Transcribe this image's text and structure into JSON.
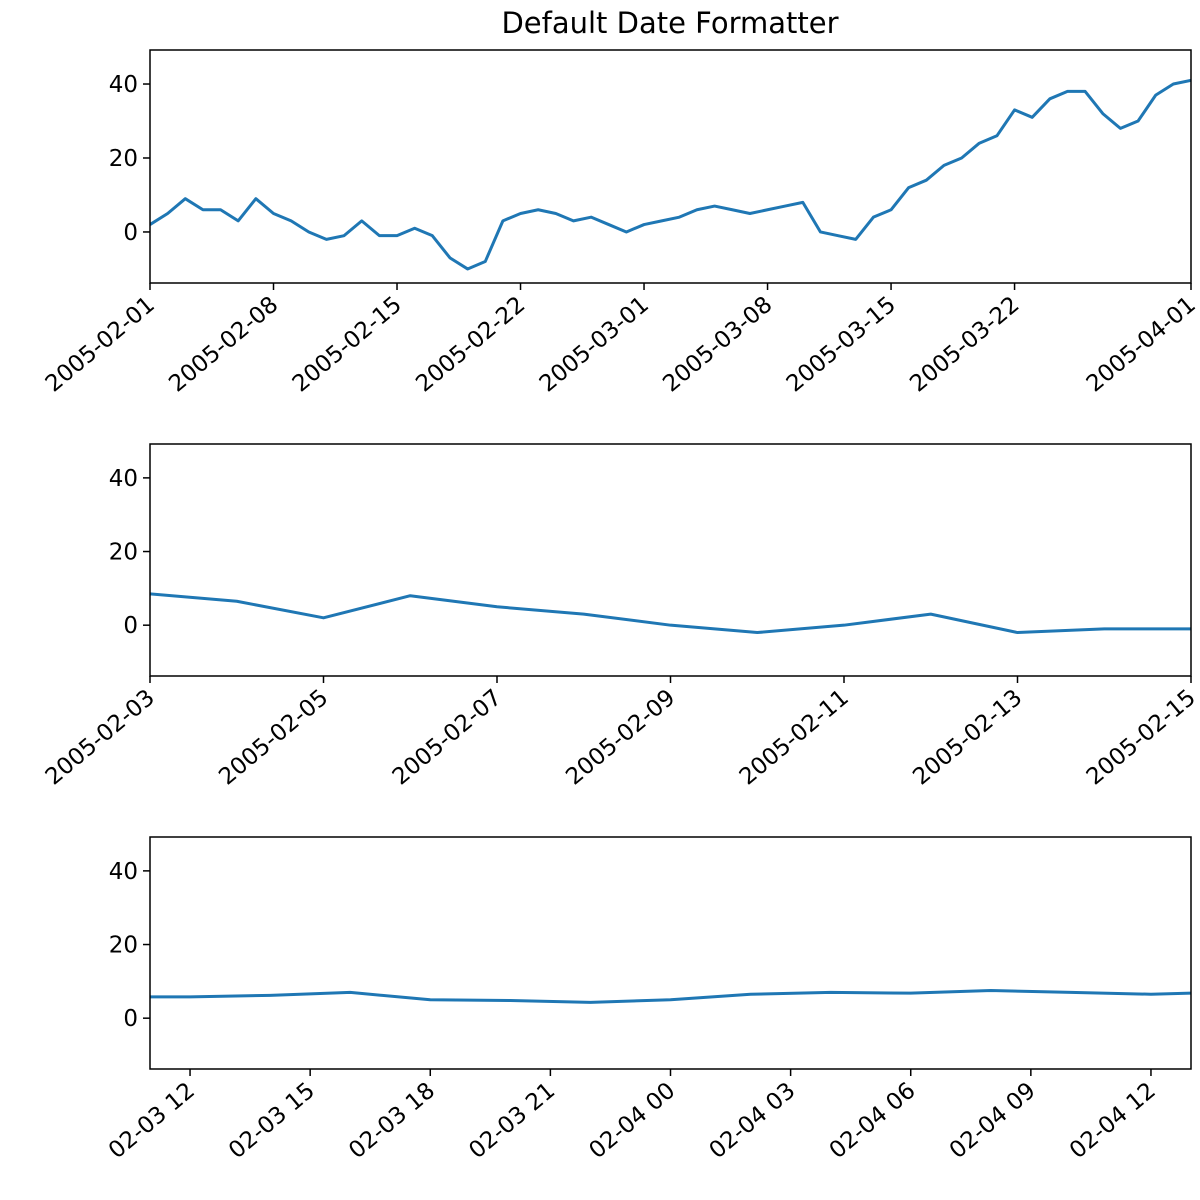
{
  "chart_data": [
    {
      "type": "line",
      "title": "Default Date Formatter",
      "color": "#1f77b4",
      "x": [
        "2005-02-01",
        "2005-02-02",
        "2005-02-03",
        "2005-02-04",
        "2005-02-05",
        "2005-02-06",
        "2005-02-07",
        "2005-02-08",
        "2005-02-09",
        "2005-02-10",
        "2005-02-11",
        "2005-02-12",
        "2005-02-13",
        "2005-02-14",
        "2005-02-15",
        "2005-02-16",
        "2005-02-17",
        "2005-02-18",
        "2005-02-19",
        "2005-02-20",
        "2005-02-21",
        "2005-02-22",
        "2005-02-23",
        "2005-02-24",
        "2005-02-25",
        "2005-02-26",
        "2005-02-27",
        "2005-02-28",
        "2005-03-01",
        "2005-03-02",
        "2005-03-03",
        "2005-03-04",
        "2005-03-05",
        "2005-03-06",
        "2005-03-07",
        "2005-03-08",
        "2005-03-09",
        "2005-03-10",
        "2005-03-11",
        "2005-03-12",
        "2005-03-13",
        "2005-03-14",
        "2005-03-15",
        "2005-03-16",
        "2005-03-17",
        "2005-03-18",
        "2005-03-19",
        "2005-03-20",
        "2005-03-21",
        "2005-03-22",
        "2005-03-23",
        "2005-03-24",
        "2005-03-25",
        "2005-03-26",
        "2005-03-27",
        "2005-03-28",
        "2005-03-29",
        "2005-03-30",
        "2005-03-31",
        "2005-04-01"
      ],
      "values": [
        2,
        5,
        9,
        6,
        6,
        3,
        9,
        5,
        3,
        0,
        -2,
        -1,
        3,
        -1,
        -1,
        1,
        -1,
        -7,
        -10,
        -8,
        3,
        5,
        6,
        5,
        3,
        4,
        2,
        0,
        2,
        3,
        4,
        6,
        7,
        6,
        5,
        6,
        7,
        8,
        0,
        -1,
        -2,
        4,
        6,
        12,
        14,
        18,
        20,
        24,
        26,
        33,
        31,
        36,
        38,
        38,
        32,
        28,
        30,
        37,
        40,
        41
      ],
      "xlim": [
        "2005-02-01",
        "2005-04-01"
      ],
      "xticks": [
        "2005-02-01",
        "2005-02-08",
        "2005-02-15",
        "2005-02-22",
        "2005-03-01",
        "2005-03-08",
        "2005-03-15",
        "2005-03-22",
        "2005-04-01"
      ],
      "ylim": [
        -13.8,
        49.2
      ],
      "yticks": [
        0,
        20,
        40
      ]
    },
    {
      "type": "line",
      "color": "#1f77b4",
      "x": [
        "2005-02-03",
        "2005-02-04",
        "2005-02-05",
        "2005-02-06",
        "2005-02-07",
        "2005-02-08",
        "2005-02-09",
        "2005-02-10",
        "2005-02-11",
        "2005-02-12",
        "2005-02-13",
        "2005-02-14",
        "2005-02-15"
      ],
      "values": [
        8.5,
        6.5,
        2,
        8,
        5,
        3,
        0,
        -2,
        0,
        3,
        -2,
        -1,
        -1
      ],
      "xlim": [
        "2005-02-03",
        "2005-02-15"
      ],
      "xticks": [
        "2005-02-03",
        "2005-02-05",
        "2005-02-07",
        "2005-02-09",
        "2005-02-11",
        "2005-02-13",
        "2005-02-15"
      ],
      "ylim": [
        -13.8,
        49.2
      ],
      "yticks": [
        0,
        20,
        40
      ]
    },
    {
      "type": "line",
      "color": "#1f77b4",
      "x": [
        "02-03 11",
        "02-03 12",
        "02-03 14",
        "02-03 16",
        "02-03 18",
        "02-03 20",
        "02-03 22",
        "02-04 00",
        "02-04 02",
        "02-04 04",
        "02-04 06",
        "02-04 08",
        "02-04 10",
        "02-04 12",
        "02-04 13"
      ],
      "values": [
        5.8,
        5.8,
        6.2,
        7.0,
        5.0,
        4.8,
        4.3,
        5.0,
        6.5,
        7.0,
        6.8,
        7.5,
        7.0,
        6.5,
        6.8
      ],
      "xlim": [
        "02-03 11",
        "02-04 13"
      ],
      "xticks": [
        "02-03 12",
        "02-03 15",
        "02-03 18",
        "02-03 21",
        "02-04 00",
        "02-04 03",
        "02-04 06",
        "02-04 09",
        "02-04 12"
      ],
      "ylim": [
        -13.8,
        49.2
      ],
      "yticks": [
        0,
        20,
        40
      ]
    }
  ]
}
